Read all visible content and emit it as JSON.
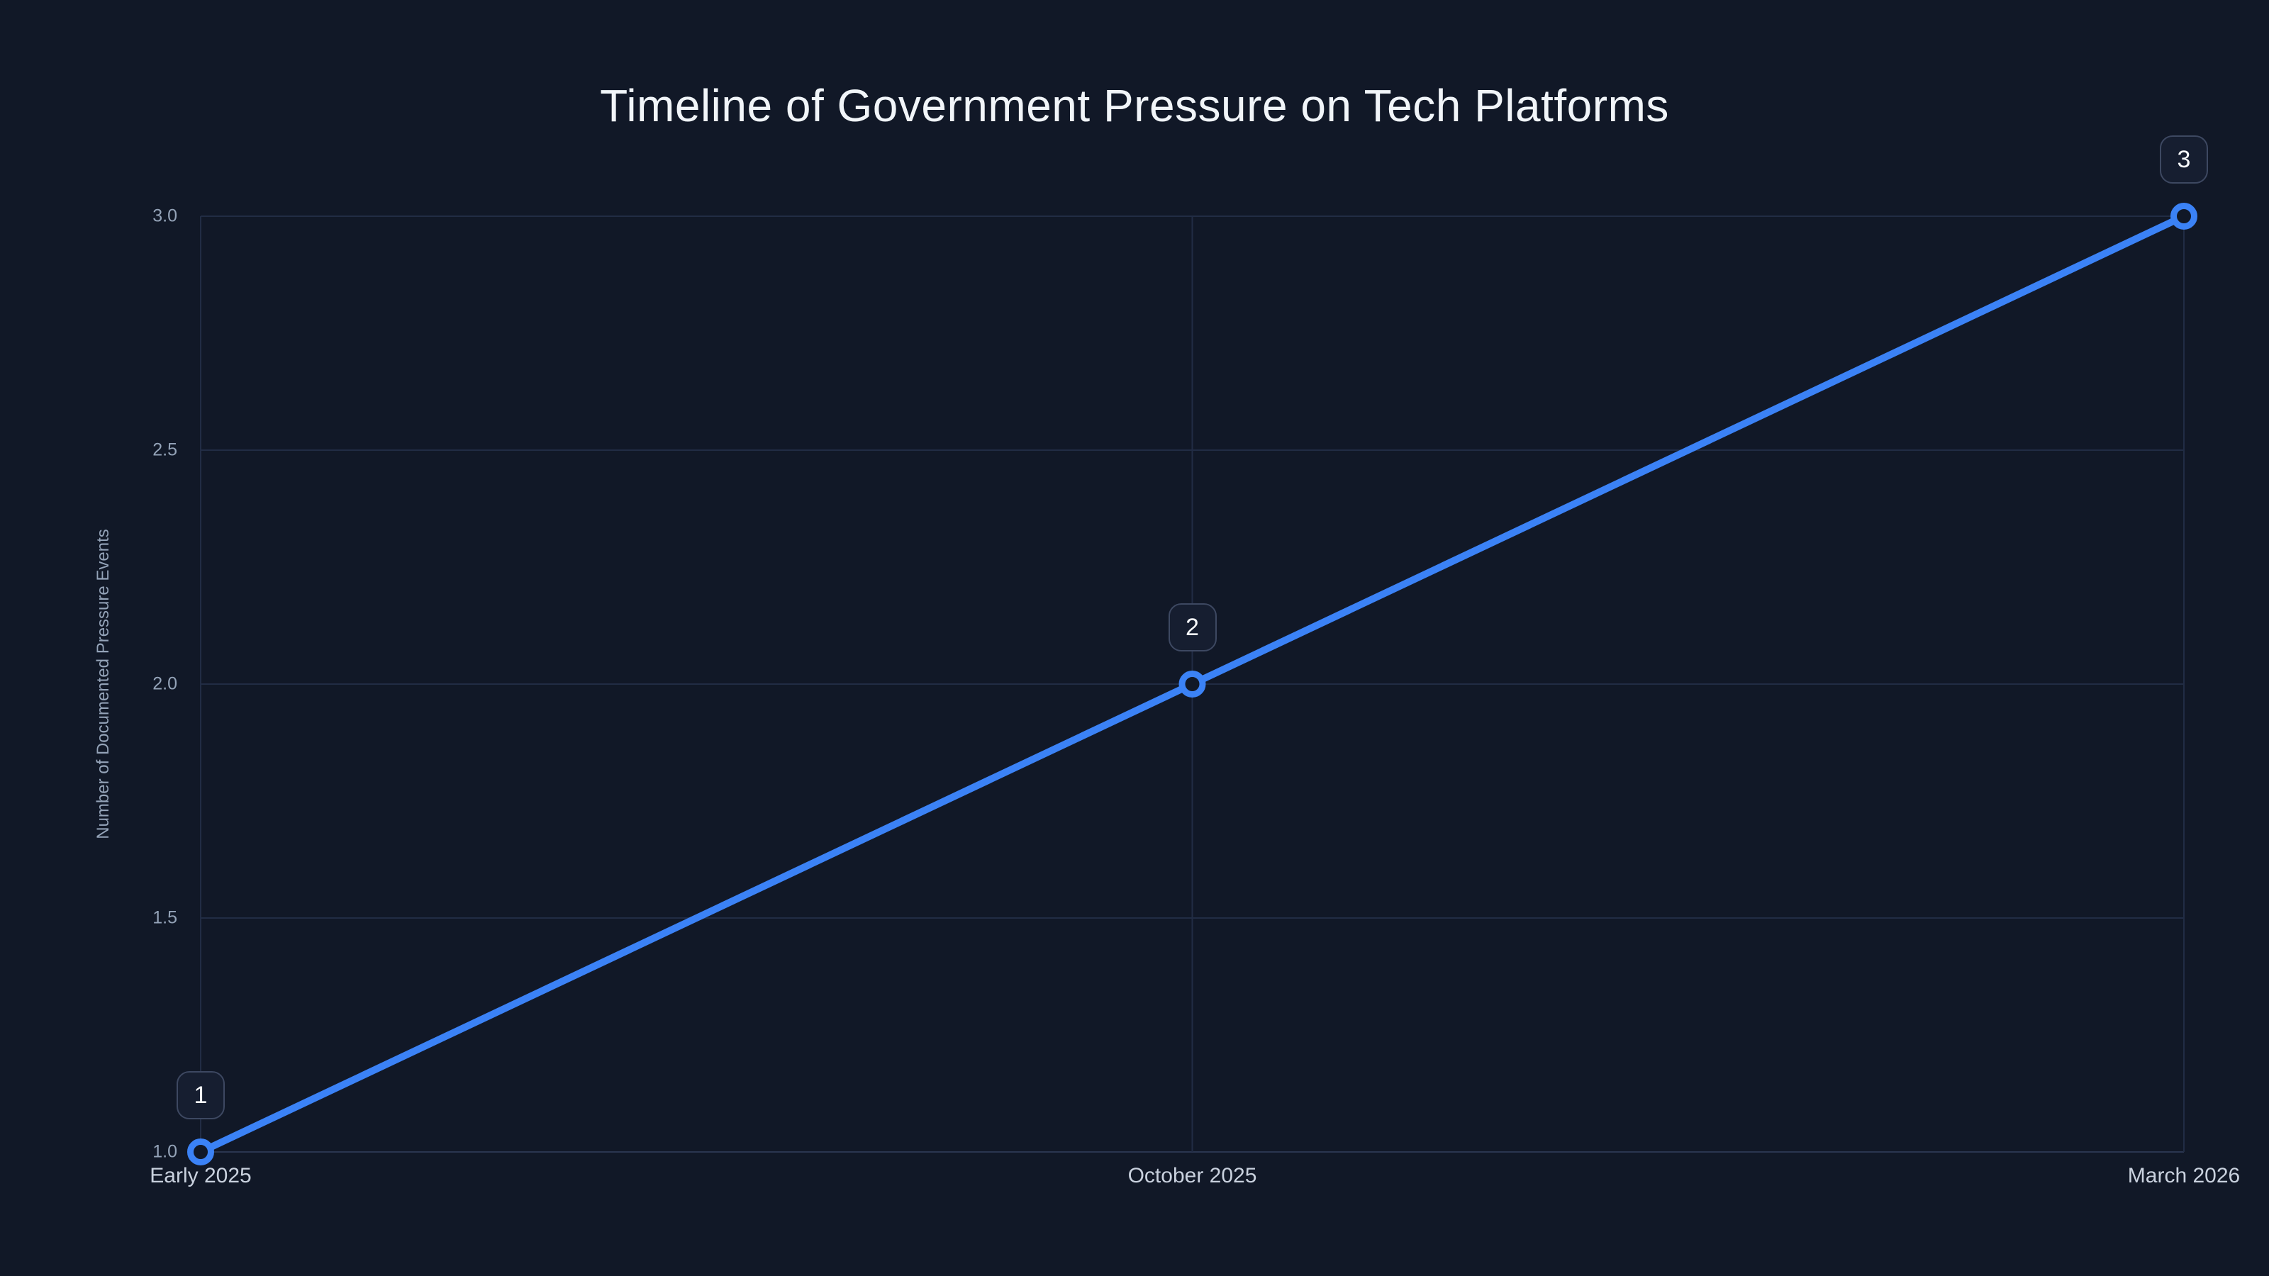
{
  "page": {
    "background_color": "#111827"
  },
  "chart_data": {
    "type": "line",
    "title": "Timeline of Government Pressure on Tech Platforms",
    "categories": [
      "Early 2025",
      "October 2025",
      "March 2026"
    ],
    "values": [
      1,
      2,
      3
    ],
    "point_labels": [
      "1",
      "2",
      "3"
    ],
    "series": [
      {
        "name": "Documented Pressure Events",
        "values": [
          1,
          2,
          3
        ]
      }
    ],
    "xlabel": "",
    "ylabel": "Number of Documented Pressure Events",
    "ylim": [
      1.0,
      3.0
    ],
    "yticks": [
      1.0,
      1.5,
      2.0,
      2.5,
      3.0
    ],
    "ytick_labels": [
      "1.0",
      "1.5",
      "2.0",
      "2.5",
      "3.0"
    ],
    "grid": "on",
    "legend": "off",
    "colors": {
      "background": "#111827",
      "line": "#3B82F6",
      "marker_stroke": "#3B82F6",
      "marker_fill": "#111827",
      "gridline": "#212C44",
      "axis_line": "#2A3550",
      "y_tick_text": "#94A3B8",
      "x_tick_text": "#C9D1DE",
      "title_text": "#F1F5F9",
      "badge_background": "#161E30",
      "badge_border": "#3D4861",
      "badge_text": "#F8FAFC"
    }
  }
}
